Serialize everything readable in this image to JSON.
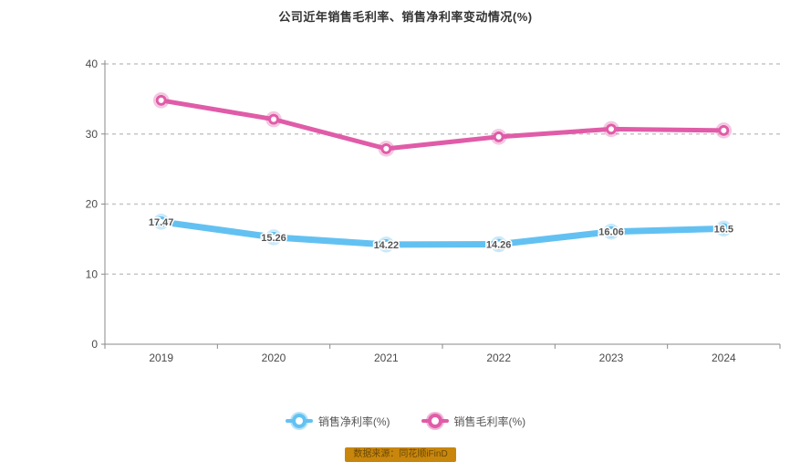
{
  "title": "公司近年销售毛利率、销售净利率变动情况(%)",
  "source_badge": "数据来源：同花顺iFinD",
  "colors": {
    "blue": "#63c1f2",
    "pink": "#e05ca8",
    "grid": "#c6c6c6",
    "axis": "#8a8a8a",
    "tick_label": "#4a4a4a",
    "data_label": "#555555",
    "title": "#333333",
    "badge_bg": "#c8860d"
  },
  "chart_data": {
    "type": "line",
    "categories": [
      "2019",
      "2020",
      "2021",
      "2022",
      "2023",
      "2024"
    ],
    "series": [
      {
        "name": "销售净利率(%)",
        "color": "#63c1f2",
        "values": [
          17.47,
          15.26,
          14.22,
          14.26,
          16.06,
          16.5
        ],
        "labels": [
          "17.47",
          "15.26",
          "14.22",
          "14.26",
          "16.06",
          "16.5"
        ],
        "show_labels": true,
        "line_width": 7
      },
      {
        "name": "销售毛利率(%)",
        "color": "#e05ca8",
        "values": [
          34.8,
          32.1,
          27.9,
          29.6,
          30.7,
          30.5
        ],
        "labels": [],
        "show_labels": false,
        "line_width": 5
      }
    ],
    "ylim": [
      0,
      40
    ],
    "yticks": [
      0,
      10,
      20,
      30,
      40
    ],
    "grid": "dashed-horizontal",
    "legend_position": "bottom"
  }
}
